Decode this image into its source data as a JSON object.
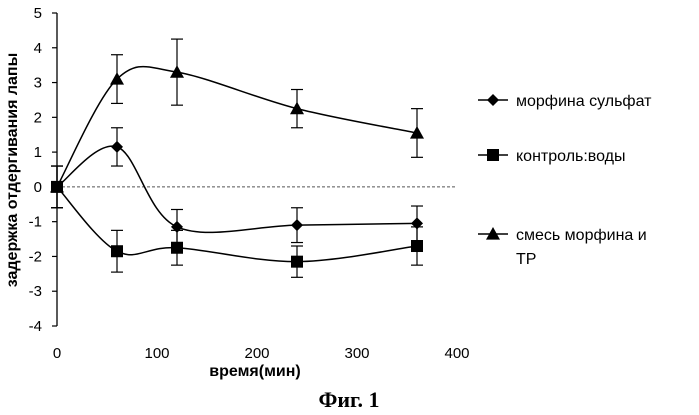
{
  "chart_data": {
    "type": "line",
    "xlabel": "время(мин)",
    "ylabel": "задержка отдергивания лапы",
    "xlim": [
      0,
      400
    ],
    "ylim": [
      -4,
      5
    ],
    "xticks": [
      0,
      100,
      200,
      300,
      400
    ],
    "yticks": [
      -4,
      -3,
      -2,
      -1,
      0,
      1,
      2,
      3,
      4,
      5
    ],
    "grid": false,
    "legend_position": "right",
    "caption": "Фиг. 1",
    "series": [
      {
        "name": "морфина сульфат",
        "marker": "diamond",
        "x": [
          0,
          60,
          120,
          240,
          360
        ],
        "y": [
          0,
          1.15,
          -1.15,
          -1.1,
          -1.05
        ],
        "err": [
          0.6,
          0.55,
          0.5,
          0.5,
          0.5
        ]
      },
      {
        "name": "контроль:воды",
        "marker": "square",
        "x": [
          0,
          60,
          120,
          240,
          360
        ],
        "y": [
          0,
          -1.85,
          -1.75,
          -2.15,
          -1.7
        ],
        "err": [
          0.6,
          0.6,
          0.5,
          0.45,
          0.55
        ]
      },
      {
        "name": "смесь морфина и TP",
        "marker": "triangle",
        "x": [
          0,
          60,
          120,
          240,
          360
        ],
        "y": [
          0,
          3.1,
          3.3,
          2.25,
          1.55
        ],
        "err": [
          0.6,
          0.7,
          0.95,
          0.55,
          0.7
        ]
      }
    ],
    "legend_labels": [
      "морфина сульфат",
      "контроль:воды",
      "смесь морфина и",
      "TP"
    ]
  }
}
